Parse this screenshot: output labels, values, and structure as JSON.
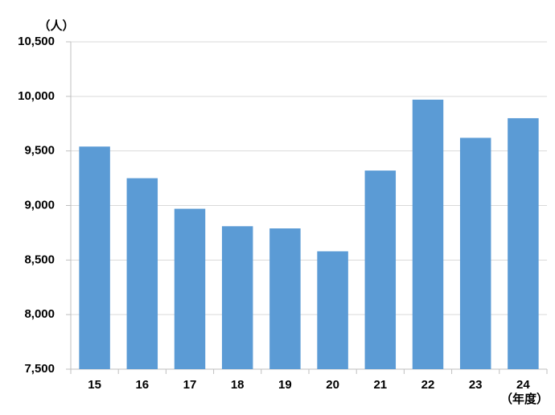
{
  "chart_data": {
    "type": "bar",
    "y_unit": "（人）",
    "x_unit": "（年度）",
    "categories": [
      "15",
      "16",
      "17",
      "18",
      "19",
      "20",
      "21",
      "22",
      "23",
      "24"
    ],
    "values": [
      9540,
      9250,
      8970,
      8810,
      8790,
      8580,
      9320,
      9970,
      9620,
      9800
    ],
    "color": "#5b9bd5",
    "ylim": [
      7500,
      10500
    ],
    "yticks": [
      {
        "value": 7500,
        "label": "7,500"
      },
      {
        "value": 8000,
        "label": "8,000"
      },
      {
        "value": 8500,
        "label": "8,500"
      },
      {
        "value": 9000,
        "label": "9,000"
      },
      {
        "value": 9500,
        "label": "9,500"
      },
      {
        "value": 10000,
        "label": "10,000"
      },
      {
        "value": 10500,
        "label": "10,500"
      }
    ],
    "grid": true
  }
}
